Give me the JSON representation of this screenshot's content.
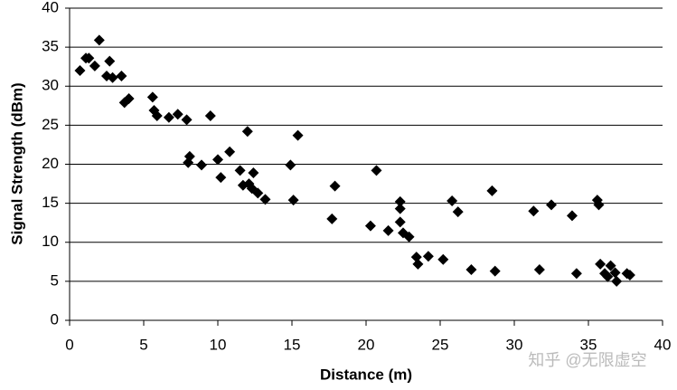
{
  "chart_data": {
    "type": "scatter",
    "xlabel": "Distance (m)",
    "ylabel": "Signal Strength (dBm)",
    "watermark": "知乎 @无限虚空",
    "color": "#000000",
    "grid": true,
    "xlim": [
      0,
      40
    ],
    "ylim": [
      0,
      40
    ],
    "xticks": [
      0,
      5,
      10,
      15,
      20,
      25,
      30,
      35,
      40
    ],
    "yticks": [
      0,
      5,
      10,
      15,
      20,
      25,
      30,
      35,
      40
    ],
    "x": [
      0.7,
      1.1,
      1.3,
      1.7,
      2.0,
      2.5,
      2.7,
      2.9,
      3.5,
      3.7,
      4.0,
      5.6,
      5.7,
      5.9,
      6.7,
      7.3,
      7.9,
      9.5,
      12.0,
      15.4,
      8.1,
      8.0,
      8.9,
      10.0,
      10.2,
      10.8,
      11.5,
      11.7,
      12.1,
      12.3,
      12.4,
      12.7,
      13.2,
      14.9,
      15.1,
      17.9,
      17.7,
      20.7,
      20.3,
      21.5,
      22.3,
      22.3,
      22.3,
      22.5,
      22.9,
      23.4,
      23.5,
      24.2,
      25.2,
      25.8,
      26.2,
      27.1,
      28.5,
      28.7,
      31.3,
      31.7,
      32.5,
      33.9,
      34.2,
      35.6,
      35.7,
      35.8,
      36.1,
      36.3,
      36.5,
      36.8,
      36.9,
      37.6,
      37.8
    ],
    "values": [
      32.0,
      33.6,
      33.6,
      32.6,
      35.9,
      31.3,
      33.2,
      31.1,
      31.3,
      27.9,
      28.4,
      28.6,
      26.9,
      26.2,
      26.0,
      26.4,
      25.7,
      26.2,
      24.2,
      23.7,
      21.0,
      20.2,
      19.9,
      20.6,
      18.3,
      21.6,
      19.2,
      17.3,
      17.5,
      16.9,
      18.9,
      16.3,
      15.5,
      19.9,
      15.4,
      17.2,
      13.0,
      19.2,
      12.1,
      11.5,
      15.2,
      14.3,
      12.6,
      11.2,
      10.7,
      8.1,
      7.2,
      8.2,
      7.8,
      15.3,
      13.9,
      6.5,
      16.6,
      6.3,
      14.0,
      6.5,
      14.8,
      13.4,
      6.0,
      15.4,
      14.8,
      7.2,
      6.0,
      5.6,
      7.0,
      6.1,
      5.0,
      6.0,
      5.8
    ]
  }
}
